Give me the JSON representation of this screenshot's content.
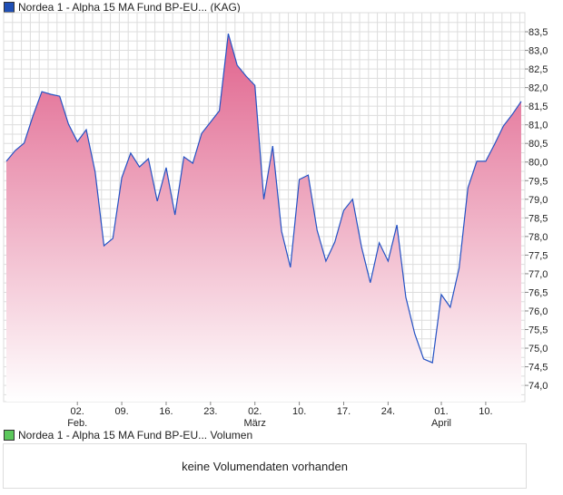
{
  "legend_price": "Nordea 1 - Alpha 15 MA Fund BP-EU... (KAG)",
  "legend_volume": "Nordea 1 - Alpha 15 MA Fund BP-EU... Volumen",
  "volume_message": "keine Volumendaten vorhanden",
  "colors": {
    "line": "#2452c4",
    "fill_top": "#e0628c",
    "fill_bottom": "#ffffff",
    "price_swatch": "#1f4fb5",
    "volume_swatch": "#5cc85c",
    "grid": "#dddddd"
  },
  "chart_data": {
    "type": "area",
    "title": "Nordea 1 - Alpha 15 MA Fund BP-EU... (KAG)",
    "ylim": [
      73.7,
      84.0
    ],
    "yticks": [
      "74,0",
      "74,5",
      "75,0",
      "75,5",
      "76,0",
      "76,5",
      "77,0",
      "77,5",
      "78,0",
      "78,5",
      "79,0",
      "79,5",
      "80,0",
      "80,5",
      "81,0",
      "81,5",
      "82,0",
      "82,5",
      "83,0",
      "83,5"
    ],
    "ytick_values": [
      74.0,
      74.5,
      75.0,
      75.5,
      76.0,
      76.5,
      77.0,
      77.5,
      78.0,
      78.5,
      79.0,
      79.5,
      80.0,
      80.5,
      81.0,
      81.5,
      82.0,
      82.5,
      83.0,
      83.5
    ],
    "xticks": [
      {
        "label": "02.",
        "sub": "Feb.",
        "index": 8
      },
      {
        "label": "09.",
        "sub": "",
        "index": 13
      },
      {
        "label": "16.",
        "sub": "",
        "index": 18
      },
      {
        "label": "23.",
        "sub": "",
        "index": 23
      },
      {
        "label": "02.",
        "sub": "März",
        "index": 28
      },
      {
        "label": "10.",
        "sub": "",
        "index": 33
      },
      {
        "label": "17.",
        "sub": "",
        "index": 38
      },
      {
        "label": "24.",
        "sub": "",
        "index": 43
      },
      {
        "label": "01.",
        "sub": "April",
        "index": 49
      },
      {
        "label": "10.",
        "sub": "",
        "index": 54
      }
    ],
    "values": [
      80.02,
      80.31,
      80.51,
      81.24,
      81.89,
      81.82,
      81.77,
      81.02,
      80.55,
      80.87,
      79.73,
      77.75,
      77.95,
      79.58,
      80.24,
      79.87,
      80.09,
      78.95,
      79.85,
      78.58,
      80.14,
      79.97,
      80.77,
      81.07,
      81.38,
      83.45,
      82.6,
      82.31,
      82.06,
      79.0,
      80.43,
      78.14,
      77.17,
      79.53,
      79.65,
      78.17,
      77.34,
      77.85,
      78.7,
      79.0,
      77.73,
      76.76,
      77.83,
      77.34,
      78.31,
      76.37,
      75.39,
      74.71,
      74.61,
      76.44,
      76.1,
      77.15,
      79.31,
      80.02,
      80.02,
      80.48,
      80.97,
      81.28,
      81.63
    ],
    "grid": true,
    "legend": "top-left"
  }
}
